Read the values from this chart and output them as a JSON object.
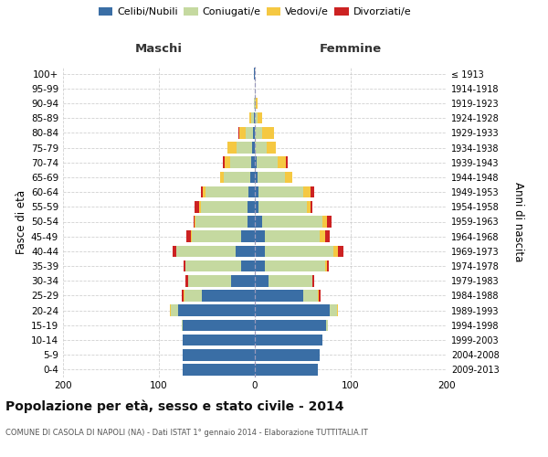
{
  "age_groups": [
    "0-4",
    "5-9",
    "10-14",
    "15-19",
    "20-24",
    "25-29",
    "30-34",
    "35-39",
    "40-44",
    "45-49",
    "50-54",
    "55-59",
    "60-64",
    "65-69",
    "70-74",
    "75-79",
    "80-84",
    "85-89",
    "90-94",
    "95-99",
    "100+"
  ],
  "birth_years": [
    "2009-2013",
    "2004-2008",
    "1999-2003",
    "1994-1998",
    "1989-1993",
    "1984-1988",
    "1979-1983",
    "1974-1978",
    "1969-1973",
    "1964-1968",
    "1959-1963",
    "1954-1958",
    "1949-1953",
    "1944-1948",
    "1939-1943",
    "1934-1938",
    "1929-1933",
    "1924-1928",
    "1919-1923",
    "1914-1918",
    "≤ 1913"
  ],
  "maschi_celibi": [
    75,
    75,
    75,
    75,
    80,
    55,
    25,
    14,
    20,
    14,
    8,
    8,
    7,
    5,
    4,
    3,
    2,
    1,
    0,
    0,
    1
  ],
  "maschi_coniugati": [
    0,
    0,
    0,
    1,
    8,
    18,
    45,
    58,
    62,
    52,
    54,
    48,
    44,
    27,
    22,
    16,
    8,
    3,
    1,
    0,
    0
  ],
  "maschi_vedovi": [
    0,
    0,
    0,
    0,
    1,
    1,
    0,
    0,
    0,
    1,
    1,
    2,
    3,
    4,
    5,
    10,
    6,
    2,
    0,
    0,
    0
  ],
  "maschi_divorziati": [
    0,
    0,
    0,
    0,
    0,
    2,
    2,
    2,
    4,
    4,
    1,
    5,
    2,
    0,
    2,
    0,
    1,
    0,
    0,
    0,
    0
  ],
  "femmine_nubili": [
    66,
    68,
    70,
    74,
    78,
    50,
    14,
    10,
    10,
    10,
    8,
    4,
    4,
    3,
    2,
    0,
    0,
    0,
    0,
    0,
    0
  ],
  "femmine_coniugate": [
    0,
    0,
    0,
    2,
    8,
    16,
    46,
    63,
    72,
    58,
    62,
    50,
    46,
    28,
    22,
    12,
    8,
    3,
    1,
    0,
    0
  ],
  "femmine_vedove": [
    0,
    0,
    0,
    0,
    1,
    1,
    0,
    2,
    5,
    5,
    5,
    4,
    8,
    8,
    8,
    10,
    12,
    5,
    2,
    0,
    0
  ],
  "femmine_divorziate": [
    0,
    0,
    0,
    0,
    0,
    2,
    2,
    2,
    5,
    5,
    5,
    2,
    4,
    0,
    2,
    0,
    0,
    0,
    0,
    0,
    0
  ],
  "color_celibi": "#3a6ea5",
  "color_coniugati": "#c5d9a0",
  "color_vedovi": "#f5c842",
  "color_divorziati": "#cc2222",
  "legend_labels": [
    "Celibi/Nubili",
    "Coniugati/e",
    "Vedovi/e",
    "Divorziati/e"
  ],
  "title": "Popolazione per età, sesso e stato civile - 2014",
  "subtitle": "COMUNE DI CASOLA DI NAPOLI (NA) - Dati ISTAT 1° gennaio 2014 - Elaborazione TUTTITALIA.IT",
  "label_maschi": "Maschi",
  "label_femmine": "Femmine",
  "ylabel_left": "Fasce di età",
  "ylabel_right": "Anni di nascita",
  "xlim": 200,
  "bg_color": "#ffffff",
  "grid_color": "#cccccc"
}
